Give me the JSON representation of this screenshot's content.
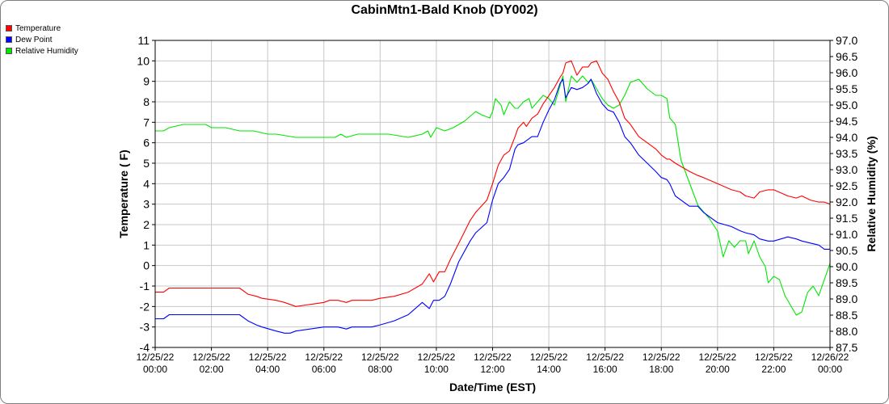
{
  "chart_data": {
    "type": "line",
    "title": "CabinMtn1-Bald Knob (DY002)",
    "xlabel": "Date/Time (EST)",
    "ylabel": "Temperature ( F)",
    "y2label": "Relative Humidity (%)",
    "xlim": [
      0,
      24
    ],
    "ylim": [
      -4,
      11
    ],
    "y2lim": [
      87.5,
      97.0
    ],
    "x_ticks": [
      {
        "x": 0,
        "date": "12/25/22",
        "time": "00:00"
      },
      {
        "x": 2,
        "date": "12/25/22",
        "time": "02:00"
      },
      {
        "x": 4,
        "date": "12/25/22",
        "time": "04:00"
      },
      {
        "x": 6,
        "date": "12/25/22",
        "time": "06:00"
      },
      {
        "x": 8,
        "date": "12/25/22",
        "time": "08:00"
      },
      {
        "x": 10,
        "date": "12/25/22",
        "time": "10:00"
      },
      {
        "x": 12,
        "date": "12/25/22",
        "time": "12:00"
      },
      {
        "x": 14,
        "date": "12/25/22",
        "time": "14:00"
      },
      {
        "x": 16,
        "date": "12/25/22",
        "time": "16:00"
      },
      {
        "x": 18,
        "date": "12/25/22",
        "time": "18:00"
      },
      {
        "x": 20,
        "date": "12/25/22",
        "time": "20:00"
      },
      {
        "x": 22,
        "date": "12/25/22",
        "time": "22:00"
      },
      {
        "x": 24,
        "date": "12/26/22",
        "time": "00:00"
      }
    ],
    "y_ticks": [
      "11",
      "10",
      "9",
      "8",
      "7",
      "6",
      "5",
      "4",
      "3",
      "2",
      "1",
      "0",
      "-1",
      "-2",
      "-3",
      "-4"
    ],
    "y2_ticks": [
      "97.0",
      "96.5",
      "96.0",
      "95.5",
      "95.0",
      "94.5",
      "94.0",
      "93.5",
      "93.0",
      "92.5",
      "92.0",
      "91.5",
      "91.0",
      "90.5",
      "90.0",
      "89.5",
      "89.0",
      "88.5",
      "88.0",
      "87.5"
    ],
    "grid": true,
    "legend_position": "top-left",
    "series": [
      {
        "name": "Temperature",
        "color": "#ff0000",
        "axis": "left",
        "x": [
          0,
          0.3,
          0.5,
          2,
          3,
          3.3,
          3.6,
          3.8,
          4.3,
          4.6,
          4.8,
          5,
          6,
          6.2,
          6.5,
          6.8,
          7,
          7.7,
          8,
          8.5,
          9,
          9.5,
          9.75,
          9.9,
          10.1,
          10.3,
          10.5,
          10.8,
          11.2,
          11.4,
          11.8,
          12,
          12.2,
          12.4,
          12.6,
          12.8,
          12.9,
          13.1,
          13.2,
          13.4,
          13.6,
          13.8,
          14,
          14.2,
          14.4,
          14.5,
          14.6,
          14.8,
          15,
          15.2,
          15.4,
          15.5,
          15.7,
          15.9,
          16.1,
          16.3,
          16.5,
          16.7,
          16.9,
          17.2,
          17.5,
          17.8,
          18,
          18.2,
          18.3,
          18.5,
          19,
          19.3,
          19.5,
          20,
          20.5,
          20.8,
          21,
          21.3,
          21.5,
          21.8,
          22,
          22.5,
          22.8,
          23,
          23.3,
          23.6,
          23.8,
          24
        ],
        "values": [
          -1.3,
          -1.3,
          -1.1,
          -1.1,
          -1.1,
          -1.4,
          -1.5,
          -1.6,
          -1.7,
          -1.8,
          -1.9,
          -2.0,
          -1.8,
          -1.7,
          -1.7,
          -1.8,
          -1.7,
          -1.7,
          -1.6,
          -1.5,
          -1.3,
          -0.9,
          -0.4,
          -0.8,
          -0.3,
          -0.3,
          0.3,
          1.1,
          2.2,
          2.6,
          3.2,
          4.0,
          4.9,
          5.4,
          5.6,
          6.3,
          6.7,
          7.0,
          6.8,
          7.2,
          7.4,
          7.9,
          8.3,
          8.7,
          9.2,
          9.4,
          9.9,
          10.0,
          9.3,
          9.7,
          9.7,
          9.9,
          10.0,
          9.4,
          9.1,
          8.5,
          8.0,
          7.2,
          6.9,
          6.3,
          6.0,
          5.7,
          5.4,
          5.2,
          5.2,
          5.0,
          4.6,
          4.4,
          4.3,
          4.0,
          3.7,
          3.6,
          3.4,
          3.3,
          3.6,
          3.7,
          3.7,
          3.4,
          3.3,
          3.4,
          3.2,
          3.1,
          3.1,
          3.0
        ]
      },
      {
        "name": "Dew Point",
        "color": "#0000ff",
        "axis": "left",
        "x": [
          0,
          0.3,
          0.5,
          2,
          3,
          3.3,
          3.6,
          3.8,
          4.3,
          4.6,
          4.8,
          5,
          6,
          6.2,
          6.5,
          6.8,
          7,
          7.7,
          8,
          8.5,
          9,
          9.5,
          9.75,
          9.9,
          10.1,
          10.3,
          10.5,
          10.8,
          11.2,
          11.4,
          11.8,
          12,
          12.2,
          12.4,
          12.6,
          12.8,
          12.9,
          13.1,
          13.2,
          13.4,
          13.6,
          13.8,
          14,
          14.2,
          14.4,
          14.5,
          14.6,
          14.8,
          15,
          15.2,
          15.4,
          15.5,
          15.7,
          15.9,
          16.1,
          16.3,
          16.5,
          16.7,
          16.9,
          17.2,
          17.5,
          17.8,
          18,
          18.2,
          18.3,
          18.5,
          19,
          19.3,
          19.5,
          20,
          20.5,
          20.8,
          21,
          21.3,
          21.5,
          21.8,
          22,
          22.5,
          22.8,
          23,
          23.3,
          23.6,
          23.8,
          24
        ],
        "values": [
          -2.6,
          -2.6,
          -2.4,
          -2.4,
          -2.4,
          -2.7,
          -2.9,
          -3.0,
          -3.2,
          -3.3,
          -3.3,
          -3.2,
          -3.0,
          -3.0,
          -3.0,
          -3.1,
          -3.0,
          -3.0,
          -2.9,
          -2.7,
          -2.4,
          -1.8,
          -2.1,
          -1.7,
          -1.7,
          -1.5,
          -0.9,
          0.2,
          1.2,
          1.6,
          2.1,
          3.2,
          4.0,
          4.3,
          4.7,
          5.7,
          5.9,
          6.0,
          6.1,
          6.3,
          6.3,
          7.0,
          7.6,
          8.1,
          8.9,
          9.1,
          8.2,
          8.7,
          8.6,
          8.7,
          8.9,
          9.1,
          8.4,
          7.9,
          7.6,
          7.5,
          7.0,
          6.3,
          6.0,
          5.4,
          5.0,
          4.6,
          4.3,
          4.2,
          4.0,
          3.4,
          2.9,
          2.9,
          2.6,
          2.1,
          1.9,
          1.7,
          1.6,
          1.5,
          1.3,
          1.2,
          1.2,
          1.4,
          1.3,
          1.2,
          1.1,
          1.0,
          0.8,
          0.8
        ]
      },
      {
        "name": "Relative Humidity",
        "color": "#00e600",
        "axis": "right",
        "x": [
          0,
          0.3,
          0.5,
          1,
          1.8,
          2,
          2.5,
          3,
          3.5,
          4,
          4.3,
          5,
          6.4,
          6.6,
          6.8,
          7.2,
          7.5,
          8,
          8.3,
          9,
          9.5,
          9.7,
          9.8,
          10,
          10.3,
          10.6,
          11,
          11.4,
          11.6,
          11.9,
          12,
          12.1,
          12.3,
          12.4,
          12.6,
          12.8,
          12.9,
          13.1,
          13.3,
          13.4,
          13.6,
          13.8,
          14,
          14.2,
          14.4,
          14.5,
          14.6,
          14.8,
          15,
          15.2,
          15.4,
          15.5,
          15.7,
          15.9,
          16.1,
          16.3,
          16.5,
          16.7,
          16.9,
          17.2,
          17.5,
          17.8,
          18,
          18.2,
          18.3,
          18.5,
          18.7,
          19,
          19.3,
          19.5,
          19.7,
          19.85,
          20,
          20.2,
          20.4,
          20.6,
          20.8,
          21,
          21.1,
          21.3,
          21.5,
          21.7,
          21.8,
          22,
          22.2,
          22.4,
          22.6,
          22.8,
          23,
          23.2,
          23.4,
          23.6,
          23.8,
          24
        ],
        "values": [
          94.2,
          94.2,
          94.3,
          94.4,
          94.4,
          94.3,
          94.3,
          94.2,
          94.2,
          94.1,
          94.1,
          94.0,
          94.0,
          94.1,
          94.0,
          94.1,
          94.1,
          94.1,
          94.1,
          94.0,
          94.1,
          94.2,
          94.0,
          94.3,
          94.2,
          94.3,
          94.5,
          94.8,
          94.7,
          94.6,
          94.8,
          95.2,
          95.0,
          94.7,
          95.1,
          94.9,
          94.9,
          95.1,
          95.2,
          94.9,
          95.1,
          95.3,
          95.2,
          95.0,
          95.6,
          95.9,
          95.1,
          95.9,
          95.7,
          95.9,
          95.7,
          95.8,
          95.5,
          95.2,
          95.0,
          94.9,
          95.0,
          95.3,
          95.7,
          95.8,
          95.5,
          95.3,
          95.3,
          95.2,
          94.6,
          94.4,
          93.3,
          92.6,
          91.9,
          91.7,
          91.5,
          91.3,
          91.1,
          90.3,
          90.8,
          90.6,
          90.8,
          90.8,
          90.4,
          90.8,
          90.3,
          90.0,
          89.5,
          89.7,
          89.6,
          89.1,
          88.8,
          88.5,
          88.6,
          89.2,
          89.4,
          89.1,
          89.6,
          90.1
        ]
      }
    ]
  }
}
